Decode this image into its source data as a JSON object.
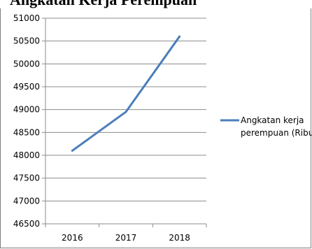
{
  "chart_data": {
    "type": "line",
    "title": "Angkatan Kerja Perempuan",
    "xlabel": "",
    "ylabel": "",
    "categories": [
      "2016",
      "2017",
      "2018"
    ],
    "series": [
      {
        "name": "Angkatan kerja perempuan (Ribu)",
        "values": [
          48100,
          48950,
          50600
        ],
        "color": "#4a7ebb"
      }
    ],
    "ylim": [
      46500,
      51000
    ],
    "yticks": [
      "46500",
      "47000",
      "47500",
      "48000",
      "48500",
      "49000",
      "49500",
      "50000",
      "50500",
      "51000"
    ],
    "grid": true,
    "legend_position": "right",
    "legend_lines": [
      "Angkatan kerja",
      "perempuan (Ribu)"
    ]
  }
}
